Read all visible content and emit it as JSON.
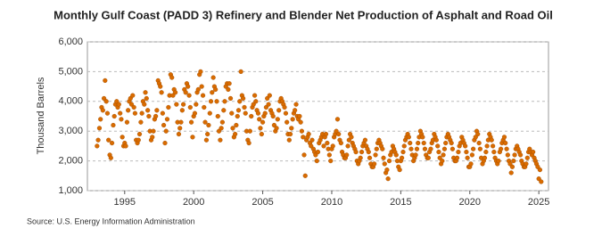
{
  "chart_data": {
    "type": "scatter",
    "title": "Monthly Gulf Coast (PADD 3) Refinery and Blender Net Production of Asphalt and Road Oil",
    "y_label": "Thousand Barrels",
    "source": "Source: U.S. Energy Information Administration",
    "color": "#d96b00",
    "grid": true,
    "xlim": [
      1992.3,
      2025.7
    ],
    "xticks": [
      1995,
      2000,
      2005,
      2010,
      2015,
      2020,
      2025
    ],
    "ylim": [
      1000,
      6000
    ],
    "yticks": [
      {
        "value": 1000,
        "label": "1,000"
      },
      {
        "value": 2000,
        "label": "2,000"
      },
      {
        "value": 3000,
        "label": "3,000"
      },
      {
        "value": 4000,
        "label": "4,000"
      },
      {
        "value": 5000,
        "label": "5,000"
      },
      {
        "value": 6000,
        "label": "6,000"
      }
    ],
    "x": [
      1993,
      1993.08,
      1993.17,
      1993.25,
      1993.33,
      1993.42,
      1993.5,
      1993.58,
      1993.67,
      1993.75,
      1993.83,
      1993.92,
      1994,
      1994.08,
      1994.17,
      1994.25,
      1994.33,
      1994.42,
      1994.5,
      1994.58,
      1994.67,
      1994.75,
      1994.83,
      1994.92,
      1995,
      1995.08,
      1995.17,
      1995.25,
      1995.33,
      1995.42,
      1995.5,
      1995.58,
      1995.67,
      1995.75,
      1995.83,
      1995.92,
      1996,
      1996.08,
      1996.17,
      1996.25,
      1996.33,
      1996.42,
      1996.5,
      1996.58,
      1996.67,
      1996.75,
      1996.83,
      1996.92,
      1997,
      1997.08,
      1997.17,
      1997.25,
      1997.33,
      1997.42,
      1997.5,
      1997.58,
      1997.67,
      1997.75,
      1997.83,
      1997.92,
      1998,
      1998.08,
      1998.17,
      1998.25,
      1998.33,
      1998.42,
      1998.5,
      1998.58,
      1998.67,
      1998.75,
      1998.83,
      1998.92,
      1999,
      1999.08,
      1999.17,
      1999.25,
      1999.33,
      1999.42,
      1999.5,
      1999.58,
      1999.67,
      1999.75,
      1999.83,
      1999.92,
      2000,
      2000.08,
      2000.17,
      2000.25,
      2000.33,
      2000.42,
      2000.5,
      2000.58,
      2000.67,
      2000.75,
      2000.83,
      2000.92,
      2001,
      2001.08,
      2001.17,
      2001.25,
      2001.33,
      2001.42,
      2001.5,
      2001.58,
      2001.67,
      2001.75,
      2001.83,
      2001.92,
      2002,
      2002.08,
      2002.17,
      2002.25,
      2002.33,
      2002.42,
      2002.5,
      2002.58,
      2002.67,
      2002.75,
      2002.83,
      2002.92,
      2003,
      2003.08,
      2003.17,
      2003.25,
      2003.33,
      2003.42,
      2003.5,
      2003.58,
      2003.67,
      2003.75,
      2003.83,
      2003.92,
      2004,
      2004.08,
      2004.17,
      2004.25,
      2004.33,
      2004.42,
      2004.5,
      2004.58,
      2004.67,
      2004.75,
      2004.83,
      2004.92,
      2005,
      2005.08,
      2005.17,
      2005.25,
      2005.33,
      2005.42,
      2005.5,
      2005.58,
      2005.67,
      2005.75,
      2005.83,
      2005.92,
      2006,
      2006.08,
      2006.17,
      2006.25,
      2006.33,
      2006.42,
      2006.5,
      2006.58,
      2006.67,
      2006.75,
      2006.83,
      2006.92,
      2007,
      2007.08,
      2007.17,
      2007.25,
      2007.33,
      2007.42,
      2007.5,
      2007.58,
      2007.67,
      2007.75,
      2007.83,
      2007.92,
      2008,
      2008.08,
      2008.17,
      2008.25,
      2008.33,
      2008.42,
      2008.5,
      2008.58,
      2008.67,
      2008.75,
      2008.83,
      2008.92,
      2009,
      2009.08,
      2009.17,
      2009.25,
      2009.33,
      2009.42,
      2009.5,
      2009.58,
      2009.67,
      2009.75,
      2009.83,
      2009.92,
      2010,
      2010.08,
      2010.17,
      2010.25,
      2010.33,
      2010.42,
      2010.5,
      2010.58,
      2010.67,
      2010.75,
      2010.83,
      2010.92,
      2011,
      2011.08,
      2011.17,
      2011.25,
      2011.33,
      2011.42,
      2011.5,
      2011.58,
      2011.67,
      2011.75,
      2011.83,
      2011.92,
      2012,
      2012.08,
      2012.17,
      2012.25,
      2012.33,
      2012.42,
      2012.5,
      2012.58,
      2012.67,
      2012.75,
      2012.83,
      2012.92,
      2013,
      2013.08,
      2013.17,
      2013.25,
      2013.33,
      2013.42,
      2013.5,
      2013.58,
      2013.67,
      2013.75,
      2013.83,
      2013.92,
      2014,
      2014.08,
      2014.17,
      2014.25,
      2014.33,
      2014.42,
      2014.5,
      2014.58,
      2014.67,
      2014.75,
      2014.83,
      2014.92,
      2015,
      2015.08,
      2015.17,
      2015.25,
      2015.33,
      2015.42,
      2015.5,
      2015.58,
      2015.67,
      2015.75,
      2015.83,
      2015.92,
      2016,
      2016.08,
      2016.17,
      2016.25,
      2016.33,
      2016.42,
      2016.5,
      2016.58,
      2016.67,
      2016.75,
      2016.83,
      2016.92,
      2017,
      2017.08,
      2017.17,
      2017.25,
      2017.33,
      2017.42,
      2017.5,
      2017.58,
      2017.67,
      2017.75,
      2017.83,
      2017.92,
      2018,
      2018.08,
      2018.17,
      2018.25,
      2018.33,
      2018.42,
      2018.5,
      2018.58,
      2018.67,
      2018.75,
      2018.83,
      2018.92,
      2019,
      2019.08,
      2019.17,
      2019.25,
      2019.33,
      2019.42,
      2019.5,
      2019.58,
      2019.67,
      2019.75,
      2019.83,
      2019.92,
      2020,
      2020.08,
      2020.17,
      2020.25,
      2020.33,
      2020.42,
      2020.5,
      2020.58,
      2020.67,
      2020.75,
      2020.83,
      2020.92,
      2021,
      2021.08,
      2021.17,
      2021.25,
      2021.33,
      2021.42,
      2021.5,
      2021.58,
      2021.67,
      2021.75,
      2021.83,
      2021.92,
      2022,
      2022.08,
      2022.17,
      2022.25,
      2022.33,
      2022.42,
      2022.5,
      2022.58,
      2022.67,
      2022.75,
      2022.83,
      2022.92,
      2023,
      2023.08,
      2023.17,
      2023.25,
      2023.33,
      2023.42,
      2023.5,
      2023.58,
      2023.67,
      2023.75,
      2023.83,
      2023.92,
      2024,
      2024.08,
      2024.17,
      2024.25,
      2024.33,
      2024.42,
      2024.5,
      2024.58,
      2024.67,
      2024.75,
      2024.83,
      2024.92,
      2025,
      2025.08,
      2025.17
    ],
    "values": [
      2500,
      2700,
      3100,
      3400,
      3800,
      3700,
      4100,
      4700,
      4000,
      3600,
      2700,
      2200,
      2100,
      2600,
      3200,
      3500,
      3900,
      4000,
      3800,
      3900,
      3600,
      3400,
      2800,
      2500,
      2600,
      2500,
      3300,
      3700,
      4000,
      4100,
      3900,
      4200,
      3800,
      3600,
      2700,
      2600,
      2700,
      2900,
      3300,
      3600,
      4000,
      3900,
      4300,
      4100,
      3700,
      3500,
      3000,
      2700,
      2800,
      3000,
      3400,
      3500,
      3700,
      4700,
      4600,
      4500,
      4300,
      3600,
      3200,
      2600,
      3000,
      3400,
      3800,
      4200,
      4900,
      4800,
      4200,
      4400,
      4300,
      3900,
      3300,
      2900,
      3100,
      3300,
      3700,
      3900,
      4400,
      4300,
      4600,
      4500,
      4200,
      3800,
      3300,
      2800,
      3500,
      3600,
      3900,
      4300,
      4400,
      4900,
      5000,
      4500,
      4200,
      3800,
      3300,
      2700,
      2900,
      3200,
      3600,
      4000,
      4300,
      4800,
      4500,
      4400,
      4000,
      3500,
      3000,
      2700,
      3100,
      3300,
      3700,
      4000,
      4500,
      4600,
      4400,
      4600,
      4100,
      3600,
      3100,
      2800,
      2900,
      3200,
      3500,
      3700,
      4000,
      5000,
      4200,
      4100,
      3800,
      3600,
      3000,
      2700,
      2600,
      3000,
      3500,
      3800,
      3900,
      4200,
      4000,
      3700,
      3600,
      3400,
      3100,
      2900,
      3300,
      3500,
      3600,
      3800,
      4100,
      3900,
      4200,
      3700,
      3600,
      3500,
      3200,
      3000,
      3100,
      3400,
      3700,
      4000,
      4100,
      4000,
      3900,
      3800,
      3600,
      3300,
      2900,
      2700,
      2900,
      3100,
      3400,
      3600,
      3700,
      3900,
      3500,
      3400,
      3500,
      3300,
      3000,
      2800,
      2200,
      1500,
      2700,
      2800,
      2900,
      2600,
      2500,
      2700,
      2400,
      2300,
      2200,
      2000,
      2300,
      2600,
      2700,
      2800,
      2900,
      2500,
      2800,
      2900,
      2600,
      2400,
      2200,
      2000,
      2400,
      2500,
      2800,
      2900,
      3000,
      3400,
      2900,
      2700,
      2600,
      2300,
      2200,
      2100,
      2100,
      2200,
      2500,
      2700,
      2900,
      2800,
      2600,
      2500,
      2400,
      2300,
      2000,
      1900,
      2000,
      2100,
      2300,
      2500,
      2600,
      2700,
      2500,
      2400,
      2300,
      2100,
      1900,
      1800,
      1800,
      1900,
      2200,
      2400,
      2600,
      2700,
      2600,
      2500,
      2400,
      2100,
      1900,
      1600,
      1700,
      1400,
      2000,
      2200,
      2300,
      2500,
      2400,
      2300,
      2200,
      2000,
      1800,
      1700,
      2000,
      2100,
      2300,
      2500,
      2700,
      2800,
      2900,
      2800,
      2600,
      2400,
      2200,
      2000,
      2100,
      2200,
      2400,
      2600,
      2800,
      3000,
      2900,
      2800,
      2600,
      2400,
      2200,
      2100,
      2100,
      2300,
      2400,
      2600,
      2700,
      2900,
      2800,
      2700,
      2500,
      2300,
      2100,
      1900,
      2000,
      2200,
      2400,
      2600,
      2800,
      2900,
      2800,
      2700,
      2600,
      2400,
      2100,
      2000,
      2000,
      2100,
      2300,
      2500,
      2600,
      2800,
      2700,
      2600,
      2500,
      2300,
      2100,
      1800,
      1800,
      1900,
      2200,
      2400,
      2700,
      2800,
      3000,
      2900,
      2600,
      2400,
      2100,
      1900,
      2000,
      2100,
      2300,
      2500,
      2700,
      2900,
      2800,
      2700,
      2500,
      2300,
      2100,
      2000,
      1900,
      2000,
      2300,
      2400,
      2600,
      2700,
      2800,
      2600,
      2400,
      2200,
      2000,
      1900,
      1600,
      1800,
      2000,
      2200,
      2400,
      2500,
      2400,
      2300,
      2200,
      2000,
      1900,
      1800,
      1800,
      1900,
      2100,
      2300,
      2400,
      2300,
      2200,
      2300,
      2100,
      2000,
      1900,
      1800,
      1400,
      1700,
      1300
    ]
  }
}
